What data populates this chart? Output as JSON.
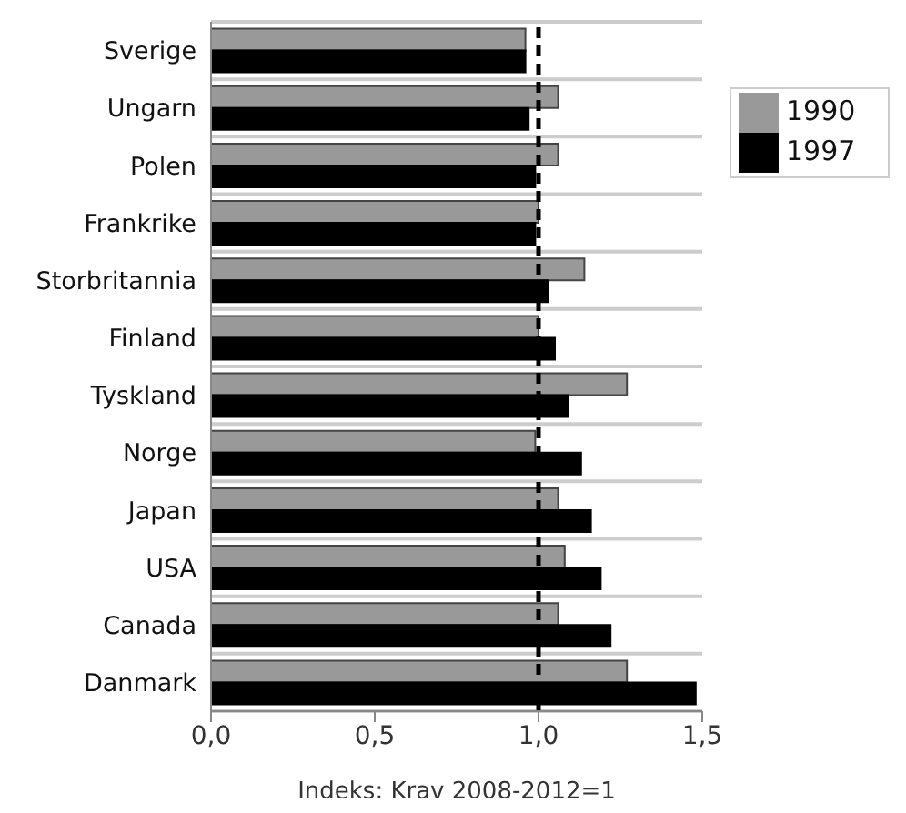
{
  "chart_data": {
    "type": "bar",
    "orientation": "horizontal",
    "xlabel": "Indeks: Krav 2008-2012=1",
    "categories": [
      "Sverige",
      "Ungarn",
      "Polen",
      "Frankrike",
      "Storbritannia",
      "Finland",
      "Tyskland",
      "Norge",
      "Japan",
      "USA",
      "Canada",
      "Danmark"
    ],
    "series": [
      {
        "name": "1990",
        "color": "#999999",
        "values": [
          0.96,
          1.06,
          1.06,
          1.0,
          1.14,
          1.0,
          1.27,
          0.99,
          1.06,
          1.08,
          1.06,
          1.27
        ]
      },
      {
        "name": "1997",
        "color": "#000000",
        "values": [
          0.96,
          0.97,
          0.99,
          0.99,
          1.03,
          1.05,
          1.09,
          1.13,
          1.16,
          1.19,
          1.22,
          1.48
        ]
      }
    ],
    "xlim": [
      0,
      1.5
    ],
    "xticks": [
      {
        "value": 0,
        "label": "0,0"
      },
      {
        "value": 0.5,
        "label": "0,5"
      },
      {
        "value": 1,
        "label": "1,0"
      },
      {
        "value": 1.5,
        "label": "1,5"
      }
    ],
    "ref_lines": [
      {
        "axis": "x",
        "value": 1,
        "color": "#000000",
        "line_style": "dashed"
      }
    ],
    "grid": "y",
    "legend": "top right"
  }
}
